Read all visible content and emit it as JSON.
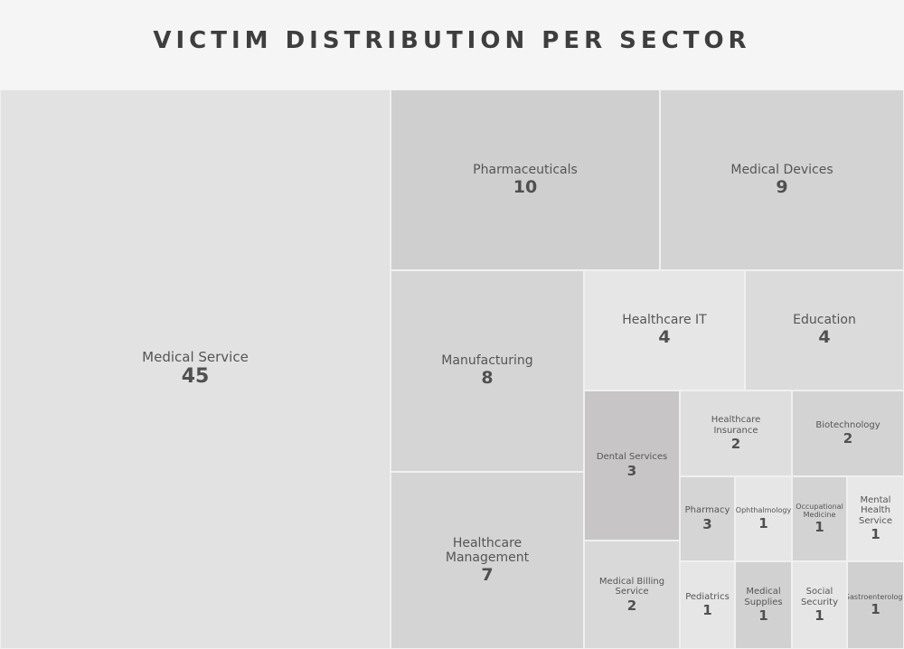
{
  "chart_data": {
    "type": "treemap",
    "title": "VICTIM DISTRIBUTION PER SECTOR",
    "items": [
      {
        "label": "Medical Service",
        "value": 45,
        "color": "#e2e2e2"
      },
      {
        "label": "Pharmaceuticals",
        "value": 10,
        "color": "#cfcfcf"
      },
      {
        "label": "Medical Devices",
        "value": 9,
        "color": "#d3d3d3"
      },
      {
        "label": "Manufacturing",
        "value": 8,
        "color": "#d6d5d5"
      },
      {
        "label": "Healthcare Management",
        "value": 7,
        "color": "#d4d4d4"
      },
      {
        "label": "Healthcare IT",
        "value": 4,
        "color": "#e6e6e6"
      },
      {
        "label": "Education",
        "value": 4,
        "color": "#dbdbdb"
      },
      {
        "label": "Dental Services",
        "value": 3,
        "color": "#c7c5c5"
      },
      {
        "label": "Healthcare Insurance",
        "value": 2,
        "color": "#dedede"
      },
      {
        "label": "Biotechnology",
        "value": 2,
        "color": "#d3d3d3"
      },
      {
        "label": "Medical Billing Service",
        "value": 2,
        "color": "#d9d9d9"
      },
      {
        "label": "Pharmacy",
        "value": 3,
        "color": "#d5d5d5"
      },
      {
        "label": "Ophthalmology",
        "value": 1,
        "color": "#e6e6e6"
      },
      {
        "label": "Occupational Medicine",
        "value": 1,
        "color": "#d3d3d3"
      },
      {
        "label": "Mental Health Service",
        "value": 1,
        "color": "#e8e8e8"
      },
      {
        "label": "Medical Supplies",
        "value": 1,
        "color": "#d1d1d1"
      },
      {
        "label": "Gastroenterology",
        "value": 1,
        "color": "#d0d0d0"
      },
      {
        "label": "Pediatrics",
        "value": 1,
        "color": "#e6e6e6"
      },
      {
        "label": "Social Security",
        "value": 1,
        "color": "#e6e6e6"
      }
    ]
  }
}
